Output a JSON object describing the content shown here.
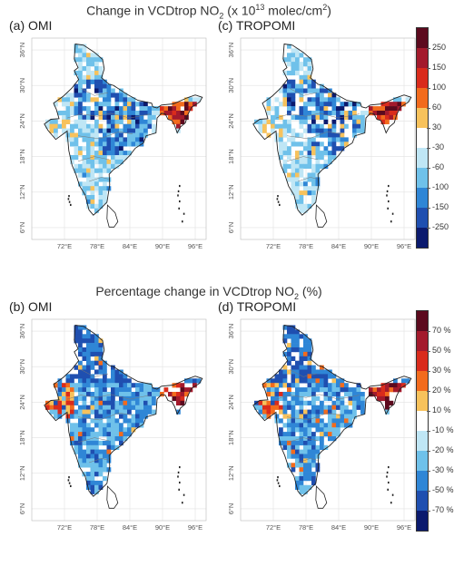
{
  "titles": {
    "top_prefix": "Change in VCDtrop NO",
    "top_sub": "2",
    "top_mid": " (x 10",
    "top_sup": "13",
    "top_suffix": " molec/cm",
    "top_sup2": "2",
    "top_end": ")",
    "bottom_prefix": "Percentage change in VCDtrop NO",
    "bottom_sub": "2",
    "bottom_suffix": " (%)"
  },
  "panels": [
    {
      "label": "(a)  OMI",
      "scheme": "abs",
      "seed": 11,
      "sensor": "omi"
    },
    {
      "label": "(c)  TROPOMI",
      "scheme": "abs",
      "seed": 27,
      "sensor": "tropomi"
    },
    {
      "label": "(b)  OMI",
      "scheme": "pct",
      "seed": 43,
      "sensor": "omi"
    },
    {
      "label": "(d)  TROPOMI",
      "scheme": "pct",
      "seed": 59,
      "sensor": "tropomi"
    }
  ],
  "lat_labels": [
    "36°N",
    "30°N",
    "24°N",
    "18°N",
    "12°N",
    "6°N"
  ],
  "lon_labels": [
    "72°E",
    "78°E",
    "84°E",
    "90°E",
    "96°E"
  ],
  "colorbar_top": {
    "ticks": [
      "250",
      "150",
      "100",
      "60",
      "30",
      "-30",
      "-60",
      "-100",
      "-150",
      "-250"
    ],
    "colors": [
      "#5c0a1e",
      "#a31a2c",
      "#d92b1c",
      "#f26b1d",
      "#f7c25c",
      "#ffffff",
      "#bfe6f5",
      "#6fc1ea",
      "#2f86d6",
      "#1f4fb0",
      "#0b1a6e"
    ]
  },
  "colorbar_bottom": {
    "ticks": [
      "70 %",
      "50 %",
      "30 %",
      "20 %",
      "10 %",
      "-10 %",
      "-20 %",
      "-30 %",
      "-50 %",
      "-70 %"
    ],
    "colors": [
      "#5c0a1e",
      "#a31a2c",
      "#d92b1c",
      "#f26b1d",
      "#f7c25c",
      "#ffffff",
      "#bfe6f5",
      "#6fc1ea",
      "#2f86d6",
      "#1f4fb0",
      "#0b1a6e"
    ]
  }
}
